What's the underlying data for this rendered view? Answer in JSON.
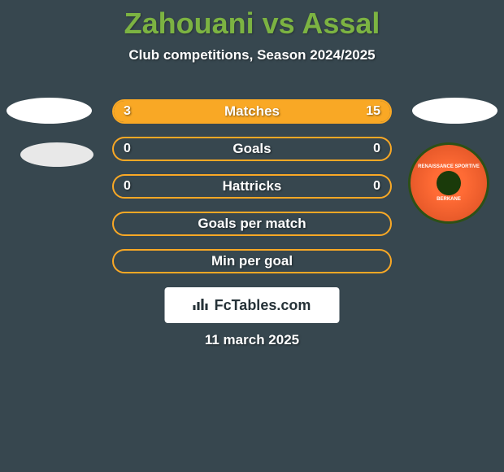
{
  "title": "Zahouani vs Assal",
  "subtitle": "Club competitions, Season 2024/2025",
  "date": "11 march 2025",
  "footer_brand": "FcTables.com",
  "colors": {
    "background": "#37474f",
    "title": "#7cb342",
    "bar_border": "#f9a825",
    "bar_fill": "#f9a825",
    "text": "#ffffff",
    "footer_bg": "#ffffff",
    "footer_text": "#263238",
    "logo_orange": "#ff6b35",
    "logo_green": "#2d5016"
  },
  "logo_right_2": {
    "top_text": "RENAISSANCE SPORTIVE",
    "bottom_text": "BERKANE"
  },
  "stats": [
    {
      "label": "Matches",
      "left_value": "3",
      "right_value": "15",
      "left_fill_pct": 17,
      "right_fill_pct": 83
    },
    {
      "label": "Goals",
      "left_value": "0",
      "right_value": "0",
      "left_fill_pct": 0,
      "right_fill_pct": 0
    },
    {
      "label": "Hattricks",
      "left_value": "0",
      "right_value": "0",
      "left_fill_pct": 0,
      "right_fill_pct": 0
    },
    {
      "label": "Goals per match",
      "left_value": "",
      "right_value": "",
      "left_fill_pct": 0,
      "right_fill_pct": 0
    },
    {
      "label": "Min per goal",
      "left_value": "",
      "right_value": "",
      "left_fill_pct": 0,
      "right_fill_pct": 0
    }
  ]
}
